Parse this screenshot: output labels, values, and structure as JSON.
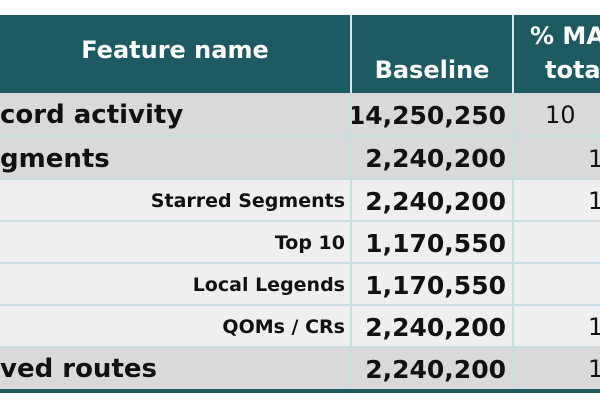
{
  "table": {
    "header": {
      "feature": "Feature name",
      "baseline": "Baseline",
      "pct_line1": "% MA",
      "pct_line2": "tota"
    },
    "rows": [
      [
        "cord activity",
        "14,250,250",
        "10"
      ],
      [
        "gments",
        "2,240,200",
        "1"
      ],
      [
        "Starred Segments",
        "2,240,200",
        "1"
      ],
      [
        "Top 10",
        "1,170,550"
      ],
      [
        "Local Legends",
        "1,170,550"
      ],
      [
        "QOMs / CRs",
        "2,240,200",
        "1"
      ],
      [
        "ved routes",
        "2,240,200",
        "1"
      ]
    ]
  }
}
